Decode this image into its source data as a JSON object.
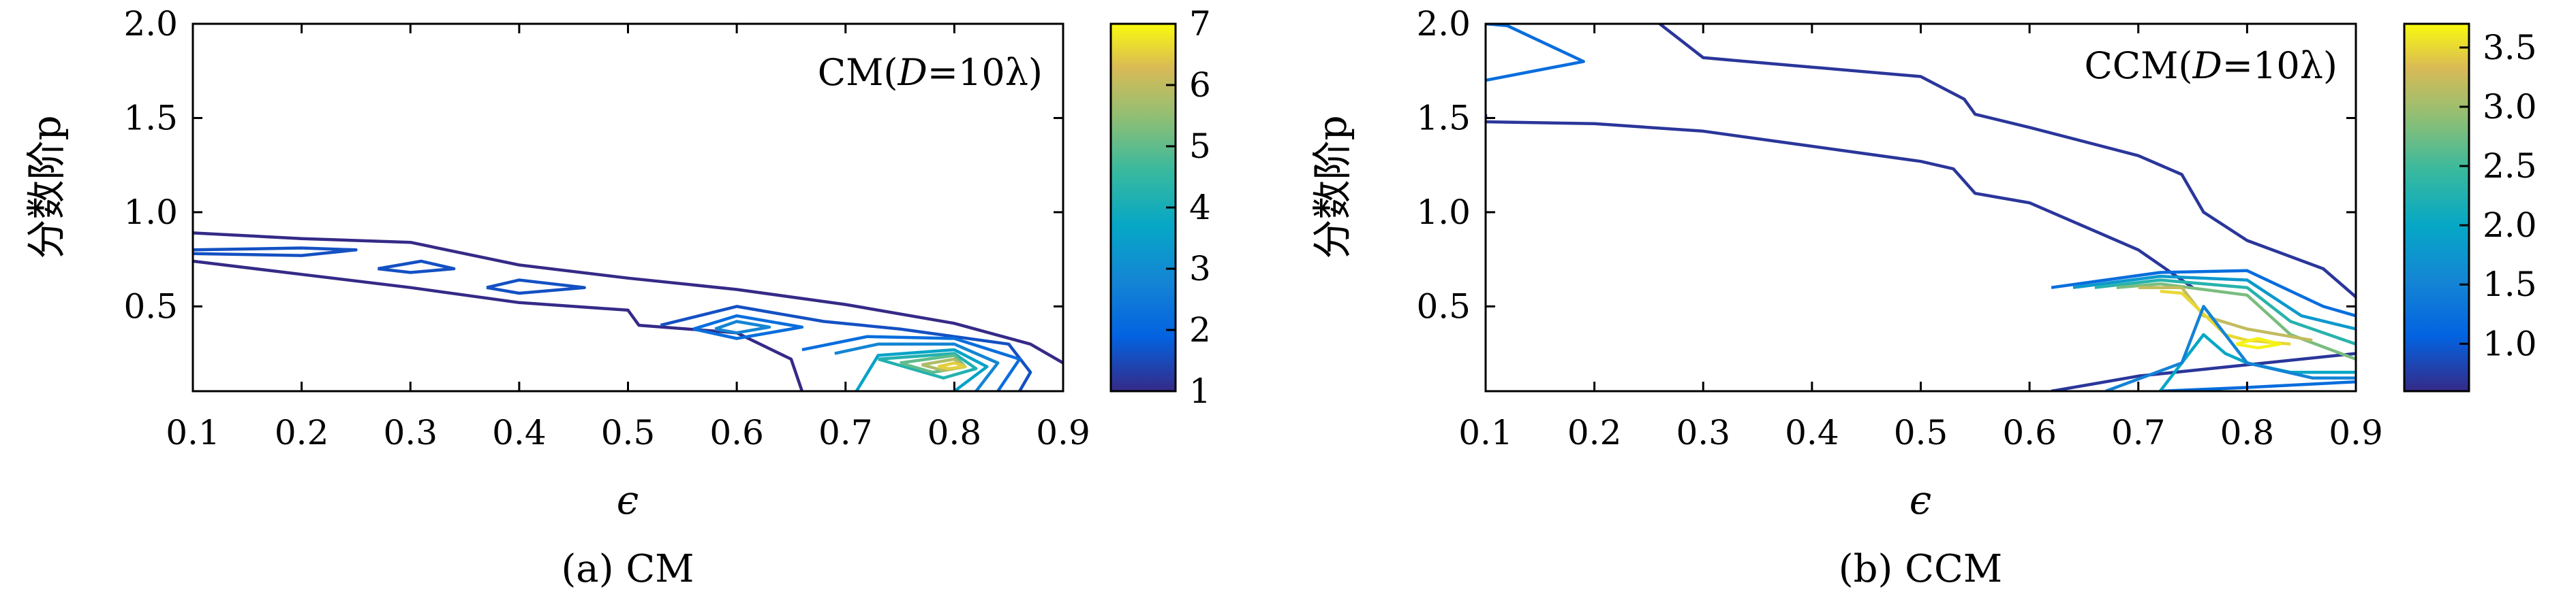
{
  "chart_data": [
    {
      "type": "contour",
      "panel": "a",
      "caption": "(a) CM",
      "in_plot_title_prefix": "CM(",
      "in_plot_title_var": "D",
      "in_plot_title_suffix": "=10λ)",
      "title_placement": "top-right",
      "xlabel": "ϵ",
      "ylabel": "分数阶p",
      "xlim": [
        0.1,
        0.9
      ],
      "ylim": [
        0.05,
        2.0
      ],
      "xticks": [
        "0.1",
        "0.2",
        "0.3",
        "0.4",
        "0.5",
        "0.6",
        "0.7",
        "0.8",
        "0.9"
      ],
      "yticks": [
        "0.5",
        "1.0",
        "1.5",
        "2.0"
      ],
      "colorbar": {
        "min": 1,
        "max": 7,
        "ticks": [
          "1",
          "2",
          "3",
          "4",
          "5",
          "6",
          "7"
        ]
      },
      "grid": false,
      "contours": [
        {
          "level": 1,
          "points": [
            [
              0.1,
              0.89
            ],
            [
              0.2,
              0.86
            ],
            [
              0.3,
              0.84
            ],
            [
              0.4,
              0.72
            ],
            [
              0.5,
              0.65
            ],
            [
              0.6,
              0.59
            ],
            [
              0.7,
              0.51
            ],
            [
              0.8,
              0.41
            ],
            [
              0.87,
              0.3
            ],
            [
              0.9,
              0.2
            ]
          ]
        },
        {
          "level": 1,
          "points": [
            [
              0.1,
              0.74
            ],
            [
              0.2,
              0.67
            ],
            [
              0.3,
              0.6
            ],
            [
              0.4,
              0.52
            ],
            [
              0.5,
              0.48
            ],
            [
              0.51,
              0.4
            ],
            [
              0.6,
              0.36
            ],
            [
              0.65,
              0.22
            ],
            [
              0.66,
              0.05
            ]
          ]
        },
        {
          "level": 1.6,
          "points": [
            [
              0.1,
              0.78
            ],
            [
              0.2,
              0.77
            ],
            [
              0.25,
              0.8
            ],
            [
              0.2,
              0.81
            ],
            [
              0.1,
              0.8
            ]
          ]
        },
        {
          "level": 1.6,
          "points": [
            [
              0.27,
              0.7
            ],
            [
              0.31,
              0.74
            ],
            [
              0.34,
              0.7
            ],
            [
              0.3,
              0.68
            ],
            [
              0.27,
              0.7
            ]
          ]
        },
        {
          "level": 1.6,
          "points": [
            [
              0.37,
              0.6
            ],
            [
              0.4,
              0.64
            ],
            [
              0.46,
              0.6
            ],
            [
              0.4,
              0.57
            ],
            [
              0.37,
              0.6
            ]
          ]
        },
        {
          "level": 1.6,
          "points": [
            [
              0.53,
              0.4
            ],
            [
              0.6,
              0.5
            ],
            [
              0.68,
              0.42
            ],
            [
              0.75,
              0.38
            ],
            [
              0.85,
              0.3
            ],
            [
              0.87,
              0.15
            ],
            [
              0.86,
              0.05
            ]
          ]
        },
        {
          "level": 2.2,
          "points": [
            [
              0.56,
              0.38
            ],
            [
              0.6,
              0.45
            ],
            [
              0.66,
              0.39
            ],
            [
              0.6,
              0.33
            ],
            [
              0.56,
              0.38
            ]
          ]
        },
        {
          "level": 2.2,
          "points": [
            [
              0.66,
              0.27
            ],
            [
              0.72,
              0.34
            ],
            [
              0.8,
              0.33
            ],
            [
              0.86,
              0.22
            ],
            [
              0.84,
              0.05
            ]
          ]
        },
        {
          "level": 2.8,
          "points": [
            [
              0.58,
              0.38
            ],
            [
              0.6,
              0.42
            ],
            [
              0.63,
              0.39
            ],
            [
              0.6,
              0.36
            ],
            [
              0.58,
              0.38
            ]
          ]
        },
        {
          "level": 2.8,
          "points": [
            [
              0.69,
              0.25
            ],
            [
              0.73,
              0.3
            ],
            [
              0.8,
              0.3
            ],
            [
              0.84,
              0.2
            ],
            [
              0.82,
              0.05
            ]
          ]
        },
        {
          "level": 3.6,
          "points": [
            [
              0.71,
              0.05
            ],
            [
              0.73,
              0.24
            ],
            [
              0.8,
              0.27
            ],
            [
              0.83,
              0.18
            ],
            [
              0.8,
              0.05
            ]
          ]
        },
        {
          "level": 4.2,
          "points": [
            [
              0.73,
              0.22
            ],
            [
              0.8,
              0.25
            ],
            [
              0.82,
              0.17
            ],
            [
              0.79,
              0.12
            ],
            [
              0.73,
              0.22
            ]
          ]
        },
        {
          "level": 5,
          "points": [
            [
              0.75,
              0.2
            ],
            [
              0.8,
              0.24
            ],
            [
              0.81,
              0.18
            ],
            [
              0.78,
              0.15
            ],
            [
              0.75,
              0.2
            ]
          ]
        },
        {
          "level": 5.8,
          "points": [
            [
              0.77,
              0.19
            ],
            [
              0.8,
              0.22
            ],
            [
              0.81,
              0.18
            ],
            [
              0.79,
              0.16
            ],
            [
              0.77,
              0.19
            ]
          ]
        },
        {
          "level": 6.5,
          "points": [
            [
              0.785,
              0.18
            ],
            [
              0.8,
              0.2
            ],
            [
              0.81,
              0.18
            ],
            [
              0.795,
              0.17
            ],
            [
              0.785,
              0.18
            ]
          ]
        }
      ]
    },
    {
      "type": "contour",
      "panel": "b",
      "caption": "(b) CCM",
      "in_plot_title_prefix": "CCM(",
      "in_plot_title_var": "D",
      "in_plot_title_suffix": "=10λ)",
      "title_placement": "top-right",
      "xlabel": "ϵ",
      "ylabel": "分数阶p",
      "xlim": [
        0.1,
        0.9
      ],
      "ylim": [
        0.05,
        2.0
      ],
      "xticks": [
        "0.1",
        "0.2",
        "0.3",
        "0.4",
        "0.5",
        "0.6",
        "0.7",
        "0.8",
        "0.9"
      ],
      "yticks": [
        "0.5",
        "1.0",
        "1.5",
        "2.0"
      ],
      "colorbar": {
        "min": 0.6,
        "max": 3.7,
        "ticks": [
          "1.0",
          "1.5",
          "2.0",
          "2.5",
          "3.0",
          "3.5"
        ]
      },
      "grid": false,
      "contours": [
        {
          "level": 0.7,
          "points": [
            [
              0.1,
              1.48
            ],
            [
              0.2,
              1.47
            ],
            [
              0.3,
              1.43
            ],
            [
              0.4,
              1.35
            ],
            [
              0.5,
              1.27
            ],
            [
              0.53,
              1.23
            ],
            [
              0.55,
              1.1
            ],
            [
              0.6,
              1.05
            ],
            [
              0.7,
              0.8
            ],
            [
              0.75,
              0.6
            ]
          ]
        },
        {
          "level": 0.7,
          "points": [
            [
              0.1,
              1.52
            ],
            [
              0.1,
              1.5
            ]
          ]
        },
        {
          "level": 0.7,
          "points": [
            [
              0.26,
              2.0
            ],
            [
              0.3,
              1.82
            ],
            [
              0.4,
              1.77
            ],
            [
              0.5,
              1.72
            ],
            [
              0.54,
              1.6
            ],
            [
              0.55,
              1.52
            ],
            [
              0.6,
              1.45
            ],
            [
              0.7,
              1.3
            ],
            [
              0.74,
              1.2
            ],
            [
              0.76,
              1.0
            ],
            [
              0.8,
              0.85
            ],
            [
              0.87,
              0.7
            ],
            [
              0.9,
              0.55
            ]
          ]
        },
        {
          "level": 0.7,
          "points": [
            [
              0.62,
              0.05
            ],
            [
              0.7,
              0.13
            ],
            [
              0.9,
              0.25
            ]
          ]
        },
        {
          "level": 1.2,
          "points": [
            [
              0.1,
              1.7
            ],
            [
              0.19,
              1.8
            ],
            [
              0.12,
              1.99
            ],
            [
              0.1,
              2.0
            ]
          ]
        },
        {
          "level": 1.2,
          "points": [
            [
              0.72,
              0.05
            ],
            [
              0.8,
              0.07
            ],
            [
              0.9,
              0.1
            ]
          ]
        },
        {
          "level": 1.2,
          "points": [
            [
              0.62,
              0.6
            ],
            [
              0.72,
              0.68
            ],
            [
              0.8,
              0.69
            ],
            [
              0.87,
              0.5
            ],
            [
              0.9,
              0.45
            ]
          ]
        },
        {
          "level": 1.8,
          "points": [
            [
              0.64,
              0.6
            ],
            [
              0.72,
              0.66
            ],
            [
              0.8,
              0.64
            ],
            [
              0.85,
              0.45
            ],
            [
              0.9,
              0.38
            ]
          ]
        },
        {
          "level": 2.3,
          "points": [
            [
              0.66,
              0.6
            ],
            [
              0.72,
              0.64
            ],
            [
              0.8,
              0.6
            ],
            [
              0.84,
              0.42
            ],
            [
              0.9,
              0.3
            ]
          ]
        },
        {
          "level": 2.8,
          "points": [
            [
              0.68,
              0.6
            ],
            [
              0.72,
              0.62
            ],
            [
              0.8,
              0.56
            ],
            [
              0.84,
              0.35
            ],
            [
              0.9,
              0.22
            ]
          ]
        },
        {
          "level": 3.2,
          "points": [
            [
              0.7,
              0.6
            ],
            [
              0.74,
              0.6
            ],
            [
              0.76,
              0.45
            ],
            [
              0.8,
              0.38
            ],
            [
              0.86,
              0.32
            ]
          ]
        },
        {
          "level": 3.5,
          "points": [
            [
              0.72,
              0.58
            ],
            [
              0.74,
              0.57
            ],
            [
              0.78,
              0.35
            ],
            [
              0.8,
              0.32
            ],
            [
              0.84,
              0.3
            ]
          ]
        },
        {
          "level": 3.65,
          "points": [
            [
              0.79,
              0.3
            ],
            [
              0.81,
              0.33
            ],
            [
              0.83,
              0.3
            ],
            [
              0.81,
              0.28
            ],
            [
              0.79,
              0.3
            ]
          ]
        },
        {
          "level": 2.0,
          "points": [
            [
              0.72,
              0.05
            ],
            [
              0.76,
              0.35
            ],
            [
              0.78,
              0.25
            ],
            [
              0.8,
              0.2
            ],
            [
              0.84,
              0.15
            ],
            [
              0.9,
              0.15
            ]
          ]
        },
        {
          "level": 1.5,
          "points": [
            [
              0.67,
              0.05
            ],
            [
              0.74,
              0.2
            ],
            [
              0.76,
              0.5
            ],
            [
              0.8,
              0.2
            ],
            [
              0.86,
              0.12
            ],
            [
              0.9,
              0.12
            ]
          ]
        }
      ]
    }
  ]
}
